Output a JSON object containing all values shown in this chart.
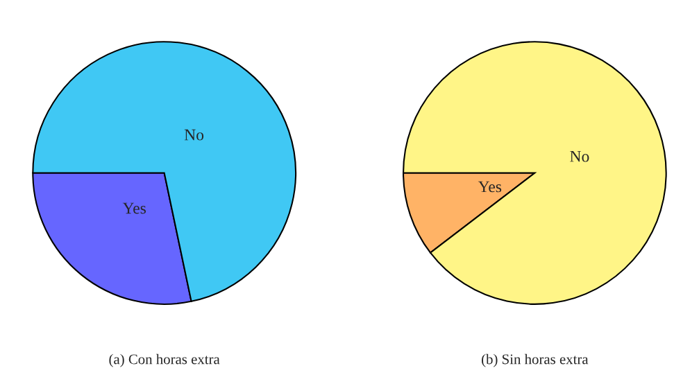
{
  "chart_data": [
    {
      "type": "pie",
      "title": "(a) Con horas extra",
      "categories": [
        "Yes",
        "No"
      ],
      "values": [
        28.3,
        71.7
      ],
      "colors": [
        "#6666ff",
        "#40c8f4"
      ]
    },
    {
      "type": "pie",
      "title": "(b) Sin horas extra",
      "categories": [
        "Yes",
        "No"
      ],
      "values": [
        10.4,
        89.6
      ],
      "colors": [
        "#ffb366",
        "#fff587"
      ]
    }
  ]
}
